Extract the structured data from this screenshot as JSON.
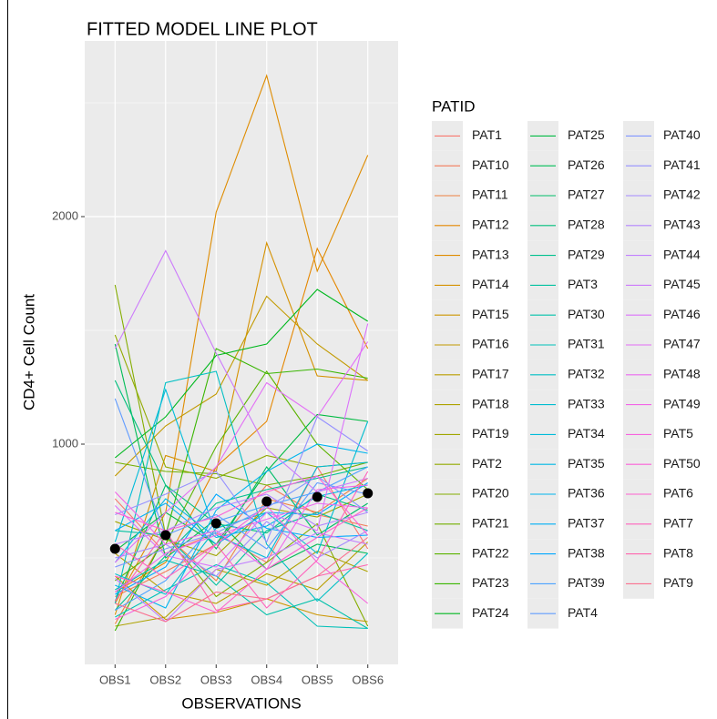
{
  "chart_data": {
    "type": "line",
    "title": "FITTED MODEL LINE PLOT",
    "x_label": "OBSERVATIONS",
    "y_label": "CD4+ Cell Count",
    "legend_title": "PATID",
    "categories": [
      "OBS1",
      "OBS2",
      "OBS3",
      "OBS4",
      "OBS5",
      "OBS6"
    ],
    "ylim": [
      32,
      2772
    ],
    "yticks": [
      1000,
      2000
    ],
    "minor_yticks": [
      500,
      1500,
      2500
    ],
    "grid": true,
    "legend": "right",
    "mean_points": {
      "color": "#000000",
      "values": [
        540,
        600,
        652,
        748,
        768,
        784
      ]
    },
    "series": [
      {
        "name": "PAT1",
        "color": "#F8766D",
        "values": [
          760,
          520,
          610,
          480,
          900,
          540
        ]
      },
      {
        "name": "PAT10",
        "color": "#F37B59",
        "values": [
          330,
          440,
          560,
          820,
          690,
          640
        ]
      },
      {
        "name": "PAT11",
        "color": "#ED8141",
        "values": [
          210,
          600,
          400,
          760,
          700,
          850
        ]
      },
      {
        "name": "PAT12",
        "color": "#E58700",
        "values": [
          350,
          480,
          900,
          1100,
          1860,
          1420
        ]
      },
      {
        "name": "PAT13",
        "color": "#DF8C00",
        "values": [
          300,
          700,
          2020,
          2620,
          1760,
          2270
        ]
      },
      {
        "name": "PAT14",
        "color": "#D59100",
        "values": [
          250,
          950,
          880,
          1885,
          1300,
          1280
        ]
      },
      {
        "name": "PAT15",
        "color": "#CC9600",
        "values": [
          420,
          230,
          260,
          320,
          250,
          220
        ]
      },
      {
        "name": "PAT16",
        "color": "#C29A00",
        "values": [
          860,
          1080,
          1220,
          1650,
          1440,
          1280
        ]
      },
      {
        "name": "PAT17",
        "color": "#B99E00",
        "values": [
          520,
          350,
          300,
          430,
          360,
          570
        ]
      },
      {
        "name": "PAT18",
        "color": "#ADA200",
        "values": [
          200,
          240,
          450,
          380,
          530,
          440
        ]
      },
      {
        "name": "PAT19",
        "color": "#A0A600",
        "values": [
          660,
          580,
          510,
          720,
          680,
          780
        ]
      },
      {
        "name": "PAT2",
        "color": "#93AA00",
        "values": [
          1480,
          900,
          850,
          950,
          900,
          920
        ]
      },
      {
        "name": "PAT20",
        "color": "#85AD00",
        "values": [
          1700,
          600,
          330,
          480,
          650,
          200
        ]
      },
      {
        "name": "PAT21",
        "color": "#72B000",
        "values": [
          920,
          880,
          870,
          820,
          860,
          920
        ]
      },
      {
        "name": "PAT22",
        "color": "#5BB300",
        "values": [
          400,
          560,
          990,
          1320,
          1000,
          800
        ]
      },
      {
        "name": "PAT23",
        "color": "#39B600",
        "values": [
          180,
          600,
          1420,
          1310,
          1330,
          1290
        ]
      },
      {
        "name": "PAT24",
        "color": "#00B81F",
        "values": [
          940,
          1120,
          1390,
          1440,
          1680,
          1540
        ]
      },
      {
        "name": "PAT25",
        "color": "#00BA42",
        "values": [
          530,
          700,
          560,
          880,
          1130,
          1100
        ]
      },
      {
        "name": "PAT26",
        "color": "#00BC56",
        "values": [
          1440,
          500,
          670,
          450,
          560,
          520
        ]
      },
      {
        "name": "PAT27",
        "color": "#00BD68",
        "values": [
          310,
          820,
          540,
          900,
          600,
          740
        ]
      },
      {
        "name": "PAT28",
        "color": "#00BF7D",
        "values": [
          1280,
          820,
          650,
          610,
          780,
          710
        ]
      },
      {
        "name": "PAT29",
        "color": "#00C08E",
        "values": [
          270,
          510,
          740,
          800,
          850,
          900
        ]
      },
      {
        "name": "PAT3",
        "color": "#00C19F",
        "values": [
          620,
          600,
          380,
          620,
          700,
          620
        ]
      },
      {
        "name": "PAT30",
        "color": "#00C1AA",
        "values": [
          360,
          490,
          420,
          250,
          320,
          190
        ]
      },
      {
        "name": "PAT31",
        "color": "#00C0B8",
        "values": [
          240,
          360,
          470,
          390,
          200,
          190
        ]
      },
      {
        "name": "PAT32",
        "color": "#00BFC4",
        "values": [
          300,
          1270,
          1320,
          560,
          310,
          520
        ]
      },
      {
        "name": "PAT33",
        "color": "#00BDD0",
        "values": [
          430,
          340,
          630,
          700,
          520,
          1100
        ]
      },
      {
        "name": "PAT34",
        "color": "#00BBDA",
        "values": [
          570,
          1240,
          600,
          500,
          900,
          920
        ]
      },
      {
        "name": "PAT35",
        "color": "#00B8E5",
        "values": [
          480,
          760,
          590,
          640,
          770,
          820
        ]
      },
      {
        "name": "PAT36",
        "color": "#00B5EE",
        "values": [
          380,
          280,
          710,
          880,
          1000,
          960
        ]
      },
      {
        "name": "PAT37",
        "color": "#00B0F6",
        "values": [
          620,
          740,
          560,
          700,
          690,
          830
        ]
      },
      {
        "name": "PAT38",
        "color": "#00A8FF",
        "values": [
          340,
          460,
          780,
          630,
          590,
          600
        ]
      },
      {
        "name": "PAT39",
        "color": "#4BA2FF",
        "values": [
          270,
          400,
          660,
          730,
          790,
          900
        ]
      },
      {
        "name": "PAT4",
        "color": "#619CFF",
        "values": [
          1200,
          600,
          690,
          540,
          830,
          780
        ]
      },
      {
        "name": "PAT40",
        "color": "#7F96FF",
        "values": [
          460,
          540,
          610,
          720,
          860,
          700
        ]
      },
      {
        "name": "PAT41",
        "color": "#9590FF",
        "values": [
          690,
          780,
          880,
          570,
          1120,
          970
        ]
      },
      {
        "name": "PAT42",
        "color": "#A58AFF",
        "values": [
          500,
          560,
          420,
          660,
          500,
          620
        ]
      },
      {
        "name": "PAT43",
        "color": "#B385FF",
        "values": [
          560,
          620,
          720,
          780,
          640,
          700
        ]
      },
      {
        "name": "PAT44",
        "color": "#C17FFF",
        "values": [
          410,
          220,
          450,
          500,
          610,
          560
        ]
      },
      {
        "name": "PAT45",
        "color": "#CC7AFB",
        "values": [
          1420,
          1850,
          1400,
          980,
          790,
          850
        ]
      },
      {
        "name": "PAT46",
        "color": "#DB72FB",
        "values": [
          730,
          510,
          460,
          700,
          620,
          1530
        ]
      },
      {
        "name": "PAT47",
        "color": "#E36EF6",
        "values": [
          480,
          700,
          900,
          1270,
          1120,
          1450
        ]
      },
      {
        "name": "PAT48",
        "color": "#EB69F0",
        "values": [
          350,
          520,
          600,
          670,
          740,
          720
        ]
      },
      {
        "name": "PAT49",
        "color": "#F265E7",
        "values": [
          790,
          560,
          620,
          450,
          800,
          820
        ]
      },
      {
        "name": "PAT5",
        "color": "#F763DE",
        "values": [
          230,
          330,
          560,
          730,
          480,
          300
        ]
      },
      {
        "name": "PAT50",
        "color": "#FB61D7",
        "values": [
          700,
          620,
          680,
          790,
          860,
          600
        ]
      },
      {
        "name": "PAT6",
        "color": "#FE61CF",
        "values": [
          420,
          350,
          260,
          450,
          590,
          720
        ]
      },
      {
        "name": "PAT7",
        "color": "#FF62BC",
        "values": [
          560,
          410,
          560,
          280,
          490,
          880
        ]
      },
      {
        "name": "PAT8",
        "color": "#FF65AE",
        "values": [
          310,
          620,
          270,
          320,
          420,
          470
        ]
      },
      {
        "name": "PAT9",
        "color": "#FA7190",
        "values": [
          300,
          220,
          350,
          320,
          420,
          590
        ]
      }
    ]
  }
}
